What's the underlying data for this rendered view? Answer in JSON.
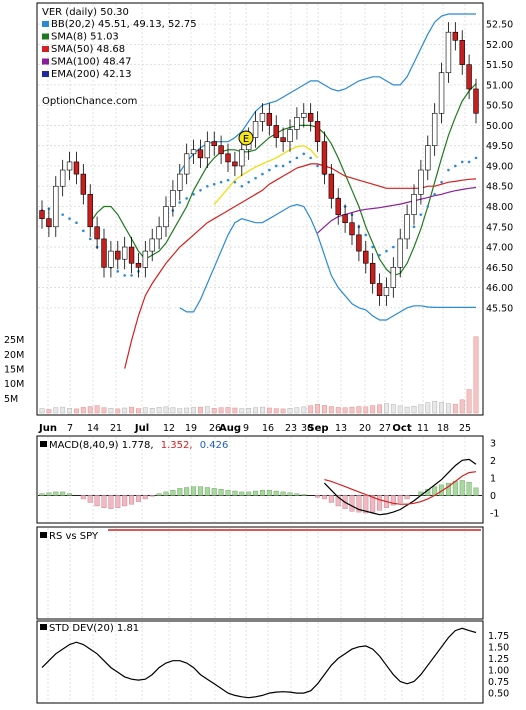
{
  "chart_data": [
    {
      "type": "candlestick",
      "title": "VER (daily) 50.30",
      "legend": [
        {
          "label": "BB(20,2) 45.51, 49.13, 52.75",
          "color": "#2a8ad4"
        },
        {
          "label": "SMA(8) 51.03",
          "color": "#1f7a1f"
        },
        {
          "label": "SMA(50) 48.68",
          "color": "#d42020"
        },
        {
          "label": "SMA(100) 48.47",
          "color": "#8a1f9a"
        },
        {
          "label": "EMA(200) 42.13",
          "color": "#1f2aa0"
        }
      ],
      "watermark": "OptionChance.com",
      "y_ticks": [
        "52.50",
        "52.00",
        "51.50",
        "51.00",
        "50.50",
        "50.00",
        "49.50",
        "49.00",
        "48.50",
        "48.00",
        "47.50",
        "47.00",
        "46.50",
        "46.00",
        "45.50"
      ],
      "ylim": [
        45.2,
        52.7
      ],
      "x_labels": [
        "Jun",
        "7",
        "14",
        "21",
        "Jul",
        "12",
        "19",
        "26",
        "Aug",
        "9",
        "16",
        "23",
        "30",
        "Sep",
        "13",
        "20",
        "27",
        "Oct",
        "11",
        "18",
        "25"
      ],
      "closes": [
        47.7,
        47.5,
        48.5,
        48.9,
        49.1,
        48.8,
        48.3,
        47.5,
        47.2,
        46.5,
        46.9,
        46.7,
        47.0,
        46.6,
        46.5,
        46.9,
        47.2,
        47.5,
        48.0,
        48.4,
        48.8,
        49.3,
        49.4,
        49.2,
        49.6,
        49.5,
        49.3,
        49.1,
        49.0,
        49.4,
        49.7,
        50.1,
        50.3,
        50.0,
        49.7,
        49.6,
        49.9,
        50.2,
        50.3,
        50.1,
        49.6,
        48.8,
        48.2,
        47.8,
        47.6,
        47.3,
        46.9,
        46.6,
        46.1,
        45.8,
        46.0,
        46.5,
        47.2,
        47.8,
        48.3,
        48.9,
        49.5,
        50.3,
        51.3,
        52.3,
        52.1,
        51.5,
        50.9,
        50.3
      ],
      "bb_upper": [
        null,
        null,
        null,
        null,
        null,
        null,
        null,
        null,
        null,
        null,
        null,
        null,
        null,
        null,
        null,
        null,
        null,
        null,
        null,
        null,
        48.85,
        49.1,
        49.3,
        49.45,
        49.55,
        49.6,
        49.6,
        49.6,
        49.7,
        49.85,
        50.1,
        50.35,
        50.5,
        50.55,
        50.6,
        50.7,
        50.8,
        50.9,
        51.0,
        51.1,
        51.1,
        51.0,
        50.9,
        50.85,
        50.9,
        51.0,
        51.1,
        51.15,
        51.2,
        51.2,
        51.1,
        51.0,
        51.0,
        51.2,
        51.55,
        51.9,
        52.25,
        52.55,
        52.7,
        52.75,
        52.75,
        52.75,
        52.75,
        52.75
      ],
      "bb_lower": [
        null,
        null,
        null,
        null,
        null,
        null,
        null,
        null,
        null,
        null,
        null,
        null,
        null,
        null,
        null,
        null,
        null,
        null,
        null,
        null,
        45.5,
        45.4,
        45.4,
        45.7,
        46.1,
        46.5,
        46.9,
        47.3,
        47.6,
        47.7,
        47.65,
        47.6,
        47.6,
        47.7,
        47.8,
        47.9,
        48.0,
        48.05,
        48.0,
        47.7,
        47.3,
        46.8,
        46.3,
        46.0,
        45.8,
        45.6,
        45.5,
        45.45,
        45.3,
        45.2,
        45.2,
        45.3,
        45.4,
        45.5,
        45.55,
        45.55,
        45.52,
        45.51,
        45.51,
        45.51,
        45.51,
        45.51,
        45.51,
        45.51
      ],
      "sma8": [
        null,
        null,
        null,
        null,
        null,
        null,
        null,
        47.6,
        47.85,
        48.0,
        48.0,
        47.8,
        47.5,
        47.2,
        46.9,
        46.7,
        46.8,
        46.9,
        47.1,
        47.4,
        47.7,
        48.0,
        48.4,
        48.7,
        49.0,
        49.2,
        49.35,
        49.4,
        49.4,
        49.35,
        49.35,
        49.4,
        49.55,
        49.7,
        49.8,
        49.9,
        49.95,
        50.0,
        50.0,
        50.0,
        49.95,
        49.8,
        49.55,
        49.2,
        48.8,
        48.4,
        48.0,
        47.5,
        47.1,
        46.7,
        46.45,
        46.3,
        46.35,
        46.6,
        47.0,
        47.45,
        48.0,
        48.6,
        49.2,
        49.75,
        50.2,
        50.6,
        50.85,
        51.03
      ],
      "sma50": [
        null,
        null,
        null,
        null,
        null,
        null,
        null,
        null,
        null,
        null,
        null,
        null,
        44.0,
        44.7,
        45.3,
        45.8,
        46.1,
        46.35,
        46.6,
        46.8,
        47.0,
        47.15,
        47.3,
        47.45,
        47.6,
        47.7,
        47.8,
        47.9,
        48.0,
        48.1,
        48.2,
        48.3,
        48.4,
        48.55,
        48.65,
        48.75,
        48.85,
        48.95,
        49.0,
        49.05,
        49.05,
        49.0,
        48.95,
        48.85,
        48.75,
        48.7,
        48.65,
        48.6,
        48.55,
        48.5,
        48.45,
        48.45,
        48.45,
        48.45,
        48.45,
        48.45,
        48.5,
        48.5,
        48.55,
        48.6,
        48.62,
        48.65,
        48.67,
        48.68
      ],
      "sma100": [
        null,
        null,
        null,
        null,
        null,
        null,
        null,
        null,
        null,
        null,
        null,
        null,
        null,
        null,
        null,
        null,
        null,
        null,
        null,
        null,
        null,
        null,
        null,
        null,
        null,
        null,
        null,
        null,
        null,
        null,
        null,
        null,
        null,
        null,
        null,
        null,
        null,
        null,
        null,
        null,
        47.35,
        47.5,
        47.65,
        47.75,
        47.8,
        47.85,
        47.9,
        47.93,
        47.95,
        47.97,
        48.0,
        48.03,
        48.06,
        48.1,
        48.14,
        48.18,
        48.22,
        48.27,
        48.3,
        48.35,
        48.39,
        48.42,
        48.45,
        48.47
      ],
      "psar": [
        47.9,
        47.95,
        47.9,
        47.8,
        47.7,
        47.6,
        47.4,
        47.2,
        47.0,
        46.7,
        46.5,
        46.4,
        46.3,
        46.3,
        46.4,
        46.7,
        47.0,
        47.3,
        47.6,
        47.9,
        48.1,
        48.2,
        48.3,
        48.4,
        48.5,
        48.55,
        48.6,
        48.65,
        48.6,
        48.5,
        48.6,
        48.7,
        48.8,
        48.9,
        49.0,
        49.0,
        49.1,
        49.2,
        49.3,
        49.2,
        49.0,
        48.8,
        48.5,
        48.2,
        48.0,
        47.8,
        47.5,
        47.3,
        47.0,
        46.8,
        46.9,
        47.0,
        47.1,
        47.3,
        47.5,
        47.8,
        48.0,
        48.3,
        48.6,
        48.9,
        49.0,
        49.1,
        49.1,
        49.2
      ]
    },
    {
      "type": "line",
      "title": "MACD(8,40,9) 1.778, 1.352, 0.426",
      "title_parts": [
        {
          "text": "MACD(8,40,9) 1.778,",
          "color": "#000000"
        },
        {
          "text": "1.352,",
          "color": "#d42020"
        },
        {
          "text": "0.426",
          "color": "#1f5fbf"
        }
      ],
      "y_ticks": [
        "3",
        "2",
        "1",
        "0",
        "-1"
      ],
      "ylim": [
        -1.4,
        3.1
      ],
      "macd": [
        null,
        null,
        null,
        null,
        null,
        null,
        null,
        null,
        null,
        null,
        null,
        null,
        null,
        null,
        null,
        null,
        null,
        null,
        null,
        null,
        null,
        null,
        null,
        null,
        null,
        null,
        null,
        null,
        null,
        null,
        null,
        null,
        null,
        null,
        null,
        null,
        null,
        null,
        null,
        null,
        null,
        0.7,
        0.3,
        -0.1,
        -0.4,
        -0.6,
        -0.8,
        -0.9,
        -1.0,
        -1.1,
        -1.05,
        -0.95,
        -0.8,
        -0.55,
        -0.3,
        0.0,
        0.3,
        0.6,
        0.9,
        1.3,
        1.7,
        2.0,
        2.05,
        1.78
      ],
      "signal": [
        null,
        null,
        null,
        null,
        null,
        null,
        null,
        null,
        null,
        null,
        null,
        null,
        null,
        null,
        null,
        null,
        null,
        null,
        null,
        null,
        null,
        null,
        null,
        null,
        null,
        null,
        null,
        null,
        null,
        null,
        null,
        null,
        null,
        null,
        null,
        null,
        null,
        null,
        null,
        null,
        null,
        0.9,
        0.8,
        0.65,
        0.5,
        0.35,
        0.2,
        0.05,
        -0.1,
        -0.25,
        -0.35,
        -0.45,
        -0.5,
        -0.5,
        -0.45,
        -0.35,
        -0.2,
        0.0,
        0.25,
        0.5,
        0.8,
        1.1,
        1.3,
        1.35
      ],
      "histogram": [
        0.1,
        0.15,
        0.2,
        0.2,
        0.1,
        0.0,
        -0.2,
        -0.4,
        -0.6,
        -0.7,
        -0.75,
        -0.7,
        -0.6,
        -0.5,
        -0.35,
        -0.2,
        -0.05,
        0.1,
        0.2,
        0.3,
        0.4,
        0.45,
        0.5,
        0.5,
        0.45,
        0.4,
        0.35,
        0.3,
        0.25,
        0.2,
        0.2,
        0.25,
        0.3,
        0.3,
        0.25,
        0.2,
        0.15,
        0.1,
        0.05,
        0.0,
        -0.1,
        -0.2,
        -0.4,
        -0.6,
        -0.75,
        -0.9,
        -0.95,
        -1.0,
        -0.95,
        -0.85,
        -0.7,
        -0.55,
        -0.4,
        -0.2,
        0.0,
        0.2,
        0.35,
        0.5,
        0.6,
        0.7,
        0.8,
        0.85,
        0.75,
        0.43
      ]
    },
    {
      "type": "line",
      "title": "RS vs SPY",
      "values": []
    },
    {
      "type": "line",
      "title": "STD DEV(20) 1.81",
      "y_ticks": [
        "1.75",
        "1.50",
        "1.25",
        "1.00",
        "0.75",
        "0.50"
      ],
      "ylim": [
        0.35,
        1.95
      ],
      "values": [
        1.05,
        1.2,
        1.35,
        1.45,
        1.55,
        1.6,
        1.55,
        1.45,
        1.35,
        1.2,
        1.05,
        0.95,
        0.85,
        0.8,
        0.78,
        0.8,
        0.9,
        1.05,
        1.15,
        1.2,
        1.2,
        1.15,
        1.05,
        0.9,
        0.8,
        0.7,
        0.6,
        0.5,
        0.45,
        0.42,
        0.4,
        0.42,
        0.45,
        0.5,
        0.52,
        0.53,
        0.52,
        0.5,
        0.5,
        0.55,
        0.7,
        0.9,
        1.1,
        1.25,
        1.35,
        1.45,
        1.5,
        1.52,
        1.45,
        1.3,
        1.1,
        0.9,
        0.75,
        0.7,
        0.75,
        0.9,
        1.1,
        1.3,
        1.5,
        1.7,
        1.85,
        1.9,
        1.85,
        1.81
      ]
    }
  ],
  "volume": {
    "y_ticks": [
      "25M",
      "20M",
      "15M",
      "10M",
      "5M"
    ],
    "values": [
      1.5,
      1.2,
      1.8,
      2.0,
      1.6,
      1.4,
      1.9,
      2.2,
      2.5,
      1.8,
      1.6,
      1.4,
      1.7,
      2.0,
      1.5,
      1.8,
      1.6,
      1.9,
      2.1,
      1.8,
      1.5,
      1.7,
      1.9,
      2.0,
      2.2,
      1.6,
      1.8,
      1.9,
      1.7,
      1.5,
      1.6,
      1.8,
      2.0,
      1.7,
      1.5,
      1.4,
      1.6,
      1.8,
      2.1,
      2.5,
      3.0,
      2.6,
      2.2,
      1.9,
      1.8,
      2.0,
      2.2,
      2.1,
      2.5,
      2.8,
      3.2,
      2.9,
      2.4,
      2.0,
      2.3,
      2.8,
      3.5,
      4.0,
      3.6,
      3.2,
      3.0,
      4.5,
      8.0,
      26.0
    ]
  }
}
